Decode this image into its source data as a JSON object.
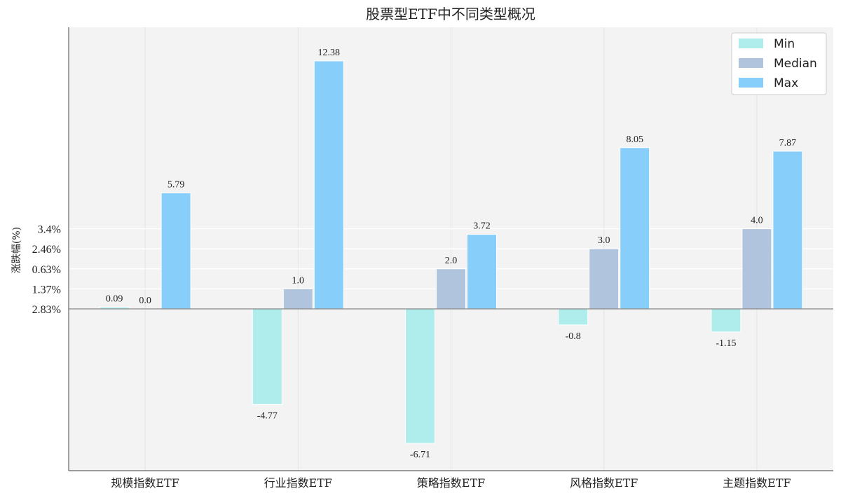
{
  "chart_data": {
    "type": "bar",
    "title": "股票型ETF中不同类型概况",
    "ylabel": "涨跌幅(%)",
    "xlabel": "",
    "categories": [
      "规模指数ETF",
      "行业指数ETF",
      "策略指数ETF",
      "风格指数ETF",
      "主题指数ETF"
    ],
    "series": [
      {
        "name": "Min",
        "color": "#afecec",
        "values": [
          0.09,
          -4.77,
          -6.71,
          -0.8,
          -1.15
        ],
        "labels": [
          "0.09",
          "-4.77",
          "-6.71",
          "-0.8",
          "-1.15"
        ]
      },
      {
        "name": "Median",
        "color": "#b0c4de",
        "values": [
          0.0,
          1.0,
          2.0,
          3.0,
          4.0
        ],
        "labels": [
          "0.0",
          "1.0",
          "2.0",
          "3.0",
          "4.0"
        ]
      },
      {
        "name": "Max",
        "color": "#87cefa",
        "values": [
          5.79,
          12.38,
          3.72,
          8.05,
          7.87
        ],
        "labels": [
          "5.79",
          "12.38",
          "3.72",
          "8.05",
          "7.87"
        ]
      }
    ],
    "yticks": [
      {
        "label": "2.83%",
        "value": 0
      },
      {
        "label": "1.37%",
        "value": 1
      },
      {
        "label": "0.63%",
        "value": 2
      },
      {
        "label": "2.46%",
        "value": 3
      },
      {
        "label": "3.4%",
        "value": 4
      }
    ],
    "ylim": [
      -8,
      14
    ],
    "grid": true,
    "legend_position": "top-right"
  }
}
